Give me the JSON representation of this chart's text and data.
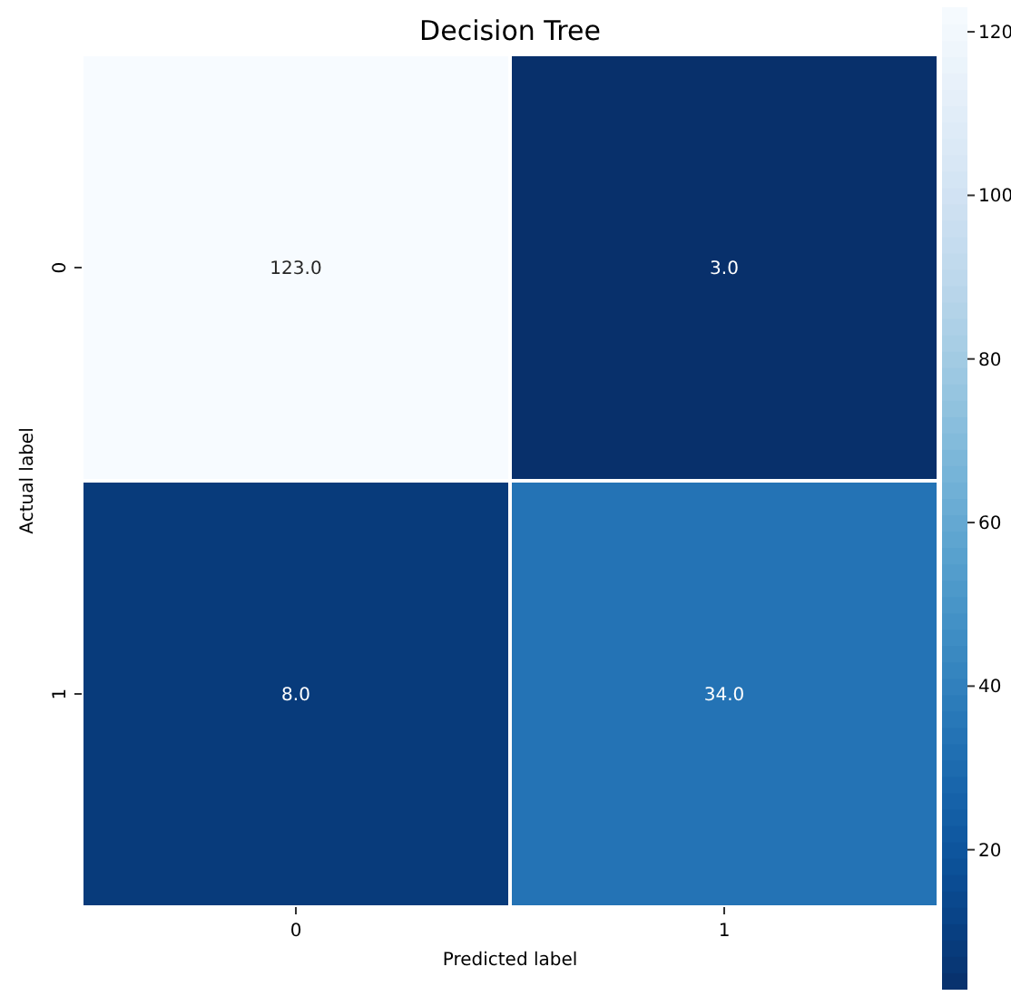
{
  "chart_data": {
    "type": "heatmap",
    "title": "Decision Tree",
    "xlabel": "Predicted label",
    "ylabel": "Actual label",
    "categories": [
      "0",
      "1"
    ],
    "y_categories": [
      "0",
      "1"
    ],
    "cells": [
      [
        123,
        3
      ],
      [
        8,
        34
      ]
    ],
    "cell_labels": [
      [
        "123.0",
        "3.0"
      ],
      [
        "8.0",
        "34.0"
      ]
    ],
    "clim": [
      3,
      123
    ],
    "cticks": [
      20,
      40,
      60,
      80,
      100,
      120
    ]
  }
}
